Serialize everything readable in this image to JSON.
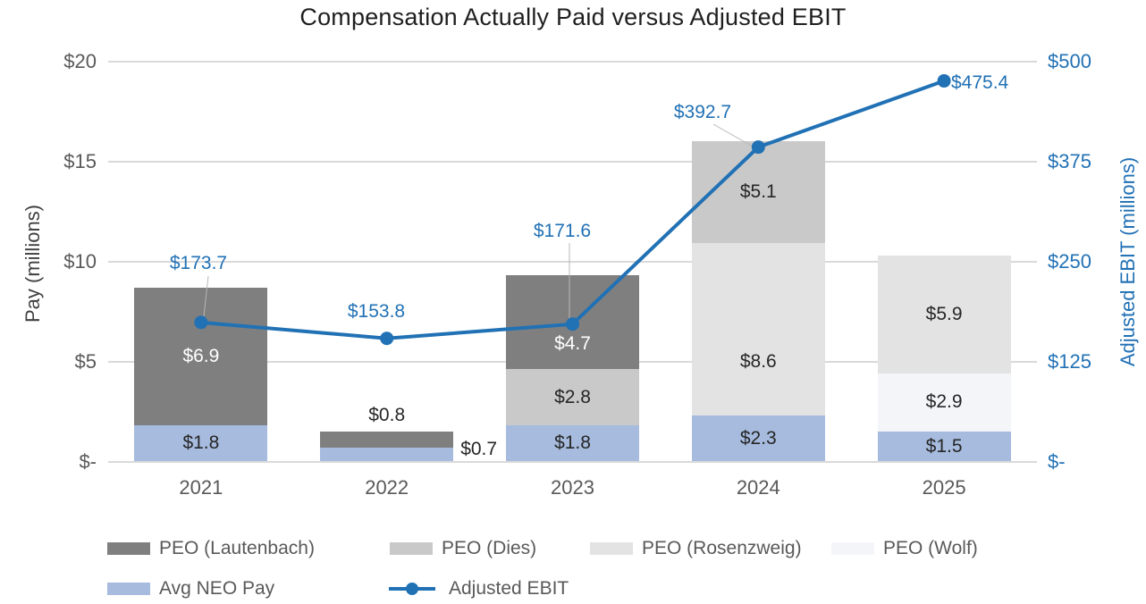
{
  "title": "Compensation Actually Paid versus Adjusted EBIT",
  "chart_data": {
    "type": "combo-stacked-bar-line",
    "categories": [
      "2021",
      "2022",
      "2023",
      "2024",
      "2025"
    ],
    "bar_unit": "USD millions",
    "series": [
      {
        "name": "Avg NEO Pay",
        "color": "#a6bbde",
        "values": [
          1.8,
          0.7,
          1.8,
          2.3,
          1.5
        ],
        "labels": [
          "$1.8",
          "$0.7",
          "$1.8",
          "$2.3",
          "$1.5"
        ]
      },
      {
        "name": "PEO (Wolf)",
        "color": "#f3f5f8",
        "values": [
          null,
          null,
          null,
          null,
          2.9
        ],
        "labels": [
          null,
          null,
          null,
          null,
          "$2.9"
        ]
      },
      {
        "name": "PEO (Rosenzweig)",
        "color": "#e3e3e4",
        "values": [
          null,
          null,
          null,
          8.6,
          5.9
        ],
        "labels": [
          null,
          null,
          null,
          "$8.6",
          "$5.9"
        ]
      },
      {
        "name": "PEO (Dies)",
        "color": "#c9c9c9",
        "values": [
          null,
          null,
          2.8,
          5.1,
          null
        ],
        "labels": [
          null,
          null,
          "$2.8",
          "$5.1",
          null
        ]
      },
      {
        "name": "PEO (Lautenbach)",
        "color": "#7f7f7f",
        "values": [
          6.9,
          0.8,
          4.7,
          null,
          null
        ],
        "labels": [
          "$6.9",
          "$0.8",
          "$4.7",
          null,
          null
        ]
      }
    ],
    "line_series": {
      "name": "Adjusted EBIT",
      "color": "#2171b5",
      "values": [
        173.7,
        153.8,
        171.6,
        392.7,
        475.4
      ],
      "labels": [
        "$173.7",
        "$153.8",
        "$171.6",
        "$392.7",
        "$475.4"
      ]
    },
    "left_axis": {
      "title": "Pay (millions)",
      "min": 0,
      "max": 20,
      "tick_labels": [
        "$-",
        "$5",
        "$10",
        "$15",
        "$20"
      ],
      "tick_values": [
        0,
        5,
        10,
        15,
        20
      ]
    },
    "right_axis": {
      "title": "Adjusted EBIT (millions)",
      "min": 0,
      "max": 500,
      "tick_labels": [
        "$-",
        "$125",
        "$250",
        "$375",
        "$500"
      ],
      "tick_values": [
        0,
        125,
        250,
        375,
        500
      ]
    },
    "grid": true,
    "legend_position": "bottom",
    "legend": [
      {
        "label": "PEO (Lautenbach)",
        "color": "#7f7f7f",
        "type": "swatch",
        "row": 0,
        "col": 0
      },
      {
        "label": "PEO (Dies)",
        "color": "#c9c9c9",
        "type": "swatch",
        "row": 0,
        "col": 1
      },
      {
        "label": "PEO (Rosenzweig)",
        "color": "#e3e3e4",
        "type": "swatch",
        "row": 0,
        "col": 2
      },
      {
        "label": "PEO (Wolf)",
        "color": "#f3f5f8",
        "type": "swatch",
        "row": 0,
        "col": 3
      },
      {
        "label": "Avg NEO Pay",
        "color": "#a6bbde",
        "type": "swatch",
        "row": 1,
        "col": 0
      },
      {
        "label": "Adjusted EBIT",
        "color": "#2171b5",
        "type": "line",
        "row": 1,
        "col": 1
      }
    ]
  }
}
